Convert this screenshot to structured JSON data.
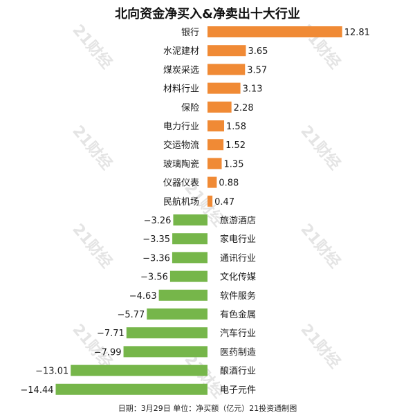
{
  "chart_data": {
    "type": "bar",
    "orientation": "horizontal",
    "title": "北向资金净买入&净卖出十大行业",
    "categories": [
      "银行",
      "水泥建材",
      "煤炭采选",
      "材料行业",
      "保险",
      "电力行业",
      "交运物流",
      "玻璃陶瓷",
      "仪器仪表",
      "民航机场",
      "旅游酒店",
      "家电行业",
      "通讯行业",
      "文化传媒",
      "软件服务",
      "有色金属",
      "汽车行业",
      "医药制造",
      "酿酒行业",
      "电子元件"
    ],
    "values": [
      12.81,
      3.65,
      3.57,
      3.13,
      2.28,
      1.58,
      1.52,
      1.35,
      0.88,
      0.47,
      -3.26,
      -3.35,
      -3.36,
      -3.56,
      -4.63,
      -5.77,
      -7.71,
      -7.99,
      -13.01,
      -14.44
    ],
    "value_labels": [
      "12.81",
      "3.65",
      "3.57",
      "3.13",
      "2.28",
      "1.58",
      "1.52",
      "1.35",
      "0.88",
      "0.47",
      "−3.26",
      "−3.35",
      "−3.36",
      "−3.56",
      "−4.63",
      "−5.77",
      "−7.71",
      "−7.99",
      "−13.01",
      "−14.44"
    ],
    "colors": {
      "positive": "#F08A35",
      "negative": "#76B64A"
    },
    "xlim": [
      -14.44,
      12.81
    ],
    "grid": false,
    "legend": "none"
  },
  "watermark": "21财经",
  "footer": "日期：3月29日 单位：净买额（亿元）21投资通制图"
}
